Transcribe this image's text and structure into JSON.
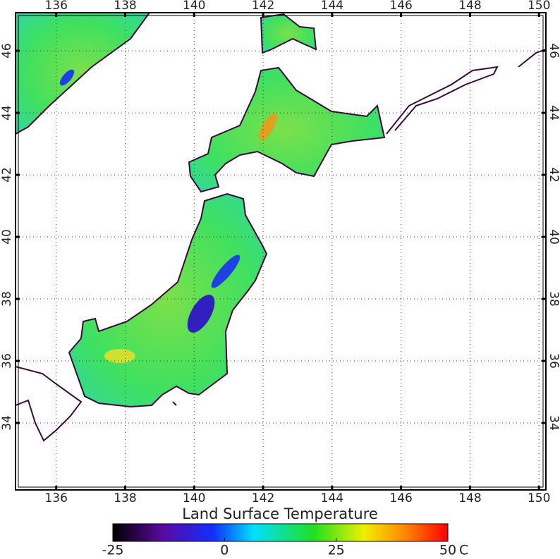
{
  "map": {
    "title": "Land Surface Temperature",
    "xlim": [
      134.82,
      150.2
    ],
    "ylim": [
      31.84,
      47.23
    ],
    "xticks": [
      136,
      138,
      140,
      142,
      144,
      146,
      148,
      150
    ],
    "yticks": [
      34,
      36,
      38,
      40,
      42,
      44,
      46
    ],
    "grid": true,
    "colorbar": {
      "range": [
        -25,
        50
      ],
      "ticks": [
        -25,
        0,
        25,
        50
      ],
      "unit": "C"
    }
  }
}
